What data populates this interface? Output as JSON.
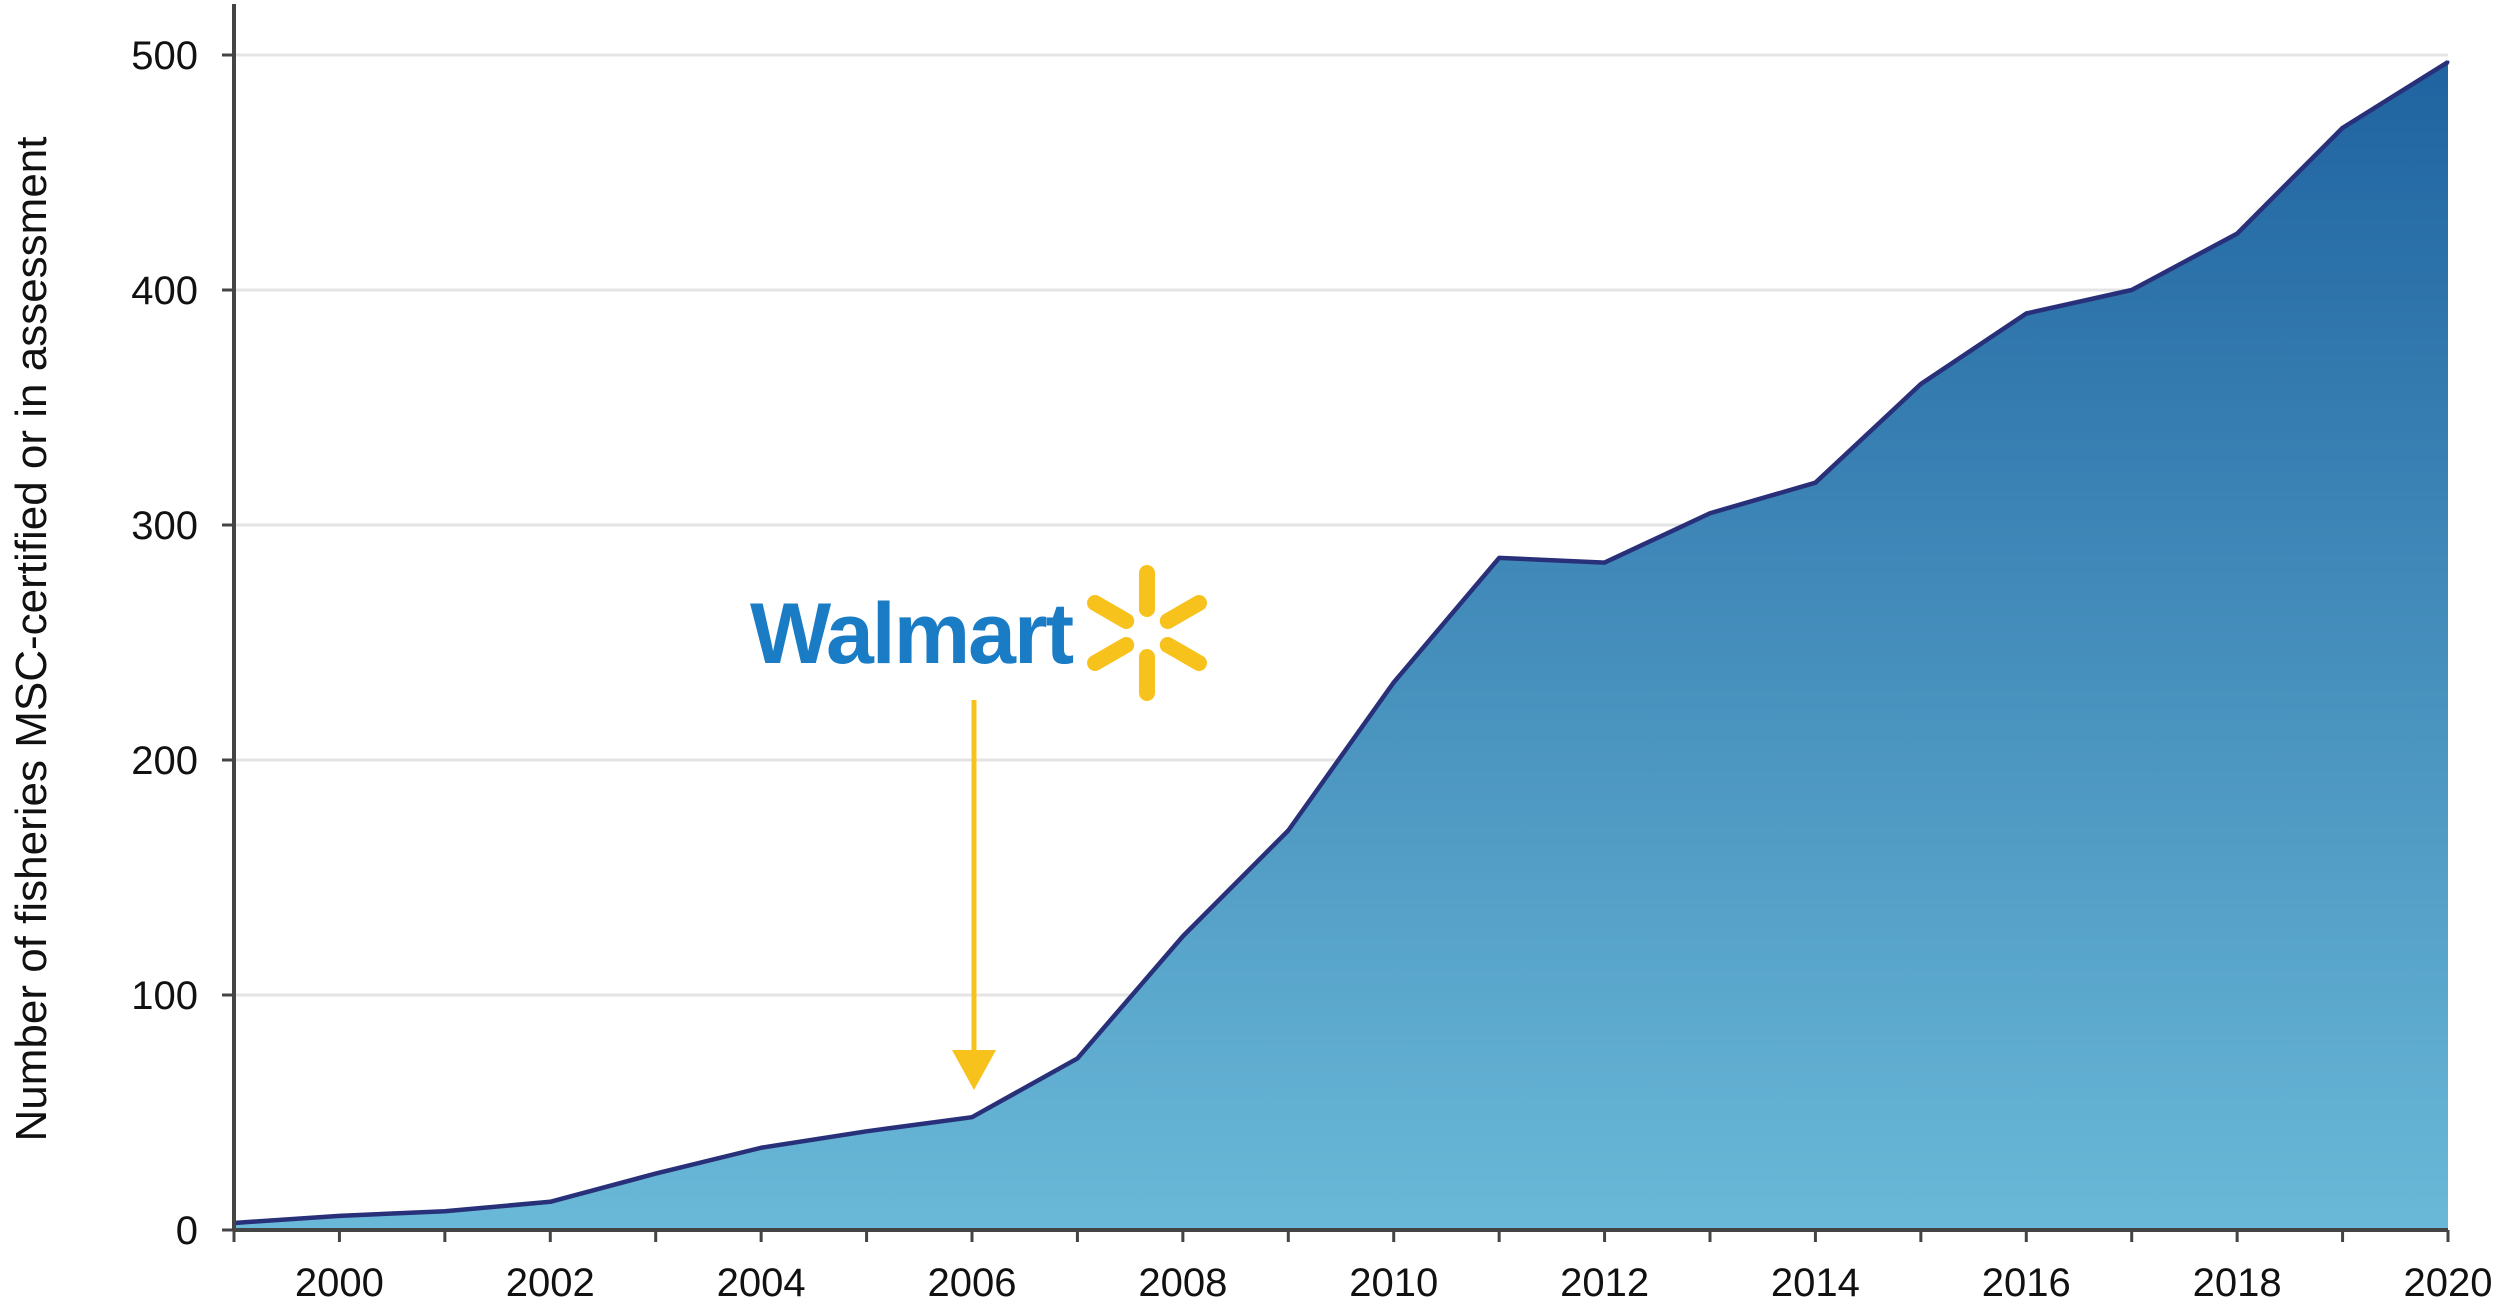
{
  "chart_data": {
    "type": "area",
    "title": "",
    "xlabel": "",
    "ylabel": "Number of fisheries MSC-certified or in assessment",
    "x": [
      1999,
      2000,
      2001,
      2002,
      2003,
      2004,
      2005,
      2006,
      2007,
      2008,
      2009,
      2010,
      2011,
      2012,
      2013,
      2014,
      2015,
      2016,
      2017,
      2018,
      2019,
      2020
    ],
    "values": [
      3,
      6,
      8,
      12,
      24,
      35,
      42,
      48,
      73,
      125,
      170,
      233,
      286,
      284,
      305,
      318,
      360,
      390,
      400,
      424,
      469,
      497
    ],
    "xlim": [
      1999,
      2020
    ],
    "ylim": [
      0,
      520
    ],
    "x_ticks": [
      2000,
      2002,
      2004,
      2006,
      2008,
      2010,
      2012,
      2014,
      2016,
      2018,
      2020
    ],
    "y_ticks": [
      0,
      100,
      200,
      300,
      400,
      500
    ],
    "grid": "horizontal",
    "fill_gradient": [
      "#6ab9d8",
      "#1f63a0"
    ],
    "line_color": "#28307a",
    "annotation": {
      "x": 2006,
      "logo_text": "Walmart",
      "logo_color": "#1a7cc5",
      "spark_color": "#f8c21c",
      "arrow_color": "#f8c21c"
    }
  }
}
